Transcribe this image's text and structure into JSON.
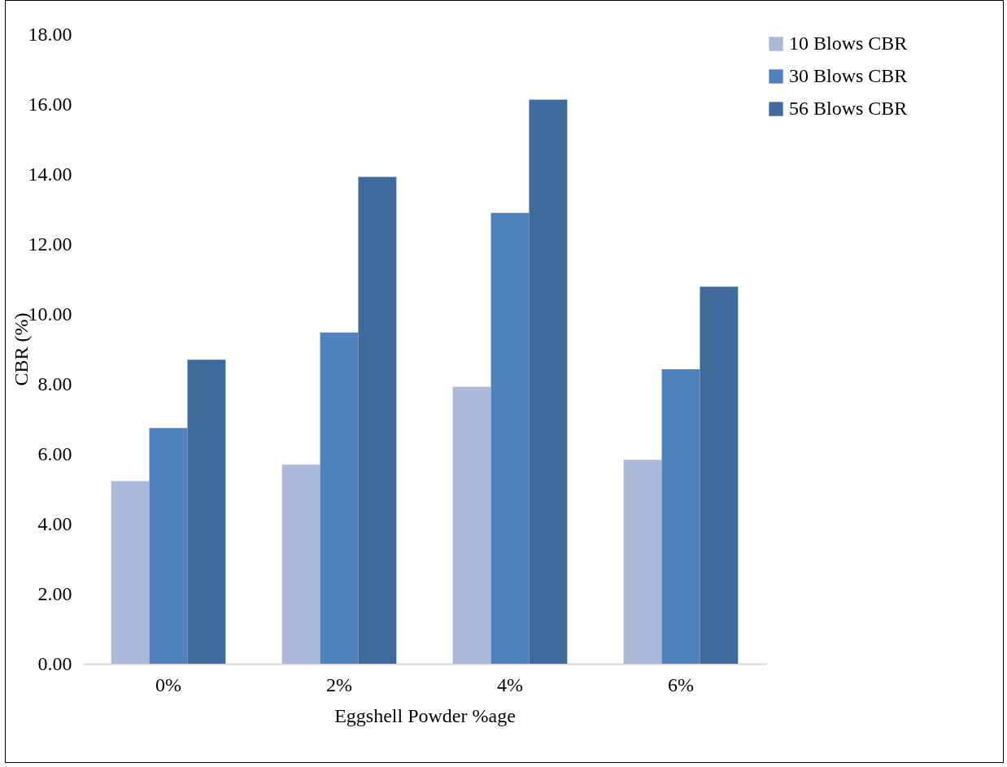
{
  "chart_data": {
    "type": "bar",
    "xlabel": "Eggshell Powder %age",
    "ylabel": "CBR (%)",
    "categories": [
      "0%",
      "2%",
      "4%",
      "6%"
    ],
    "series": [
      {
        "name": "10 Blows CBR",
        "color": "#aab9d7",
        "values": [
          5.22,
          5.69,
          7.92,
          5.83
        ]
      },
      {
        "name": "30 Blows CBR",
        "color": "#4f81bd",
        "values": [
          6.74,
          9.47,
          12.89,
          8.42
        ]
      },
      {
        "name": "56 Blows CBR",
        "color": "#3f6a9c",
        "values": [
          8.69,
          13.92,
          16.13,
          10.78
        ]
      }
    ],
    "ylim": [
      0,
      18
    ],
    "yticks": [
      {
        "value": 0,
        "label": "0.00"
      },
      {
        "value": 2,
        "label": "2.00"
      },
      {
        "value": 4,
        "label": "4.00"
      },
      {
        "value": 6,
        "label": "6.00"
      },
      {
        "value": 8,
        "label": "8.00"
      },
      {
        "value": 10,
        "label": "10.00"
      },
      {
        "value": 12,
        "label": "12.00"
      },
      {
        "value": 14,
        "label": "14.00"
      },
      {
        "value": 16,
        "label": "16.00"
      },
      {
        "value": 18,
        "label": "18.00"
      }
    ],
    "grid": false,
    "legend": "right"
  }
}
